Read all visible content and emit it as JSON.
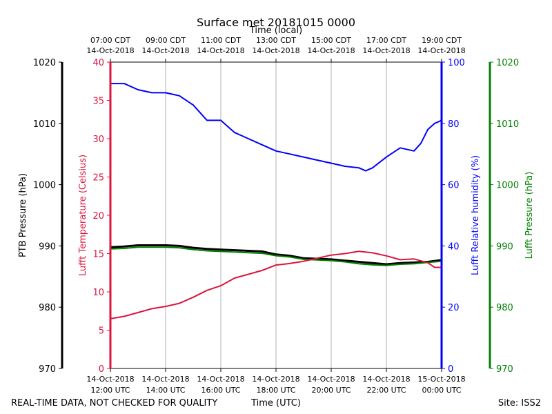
{
  "chart_data": {
    "type": "line",
    "title": "Surface met 20181015 0000",
    "top_axis_label": "Time (local)",
    "bottom_axis_label": "Time (UTC)",
    "footer_left": "REAL-TIME DATA, NOT CHECKED FOR QUALITY",
    "footer_right": "Site: ISS2",
    "x_range_hours_utc": [
      12,
      24
    ],
    "x_ticks_utc": [
      {
        "hour": 12,
        "line1": "14-Oct-2018",
        "line2": "12:00 UTC"
      },
      {
        "hour": 14,
        "line1": "14-Oct-2018",
        "line2": "14:00 UTC"
      },
      {
        "hour": 16,
        "line1": "14-Oct-2018",
        "line2": "16:00 UTC"
      },
      {
        "hour": 18,
        "line1": "14-Oct-2018",
        "line2": "18:00 UTC"
      },
      {
        "hour": 20,
        "line1": "14-Oct-2018",
        "line2": "20:00 UTC"
      },
      {
        "hour": 22,
        "line1": "14-Oct-2018",
        "line2": "22:00 UTC"
      },
      {
        "hour": 24,
        "line1": "15-Oct-2018",
        "line2": "00:00 UTC"
      }
    ],
    "x_ticks_local": [
      {
        "hour": 12,
        "line1": "07:00 CDT",
        "line2": "14-Oct-2018"
      },
      {
        "hour": 14,
        "line1": "09:00 CDT",
        "line2": "14-Oct-2018"
      },
      {
        "hour": 16,
        "line1": "11:00 CDT",
        "line2": "14-Oct-2018"
      },
      {
        "hour": 18,
        "line1": "13:00 CDT",
        "line2": "14-Oct-2018"
      },
      {
        "hour": 20,
        "line1": "15:00 CDT",
        "line2": "14-Oct-2018"
      },
      {
        "hour": 22,
        "line1": "17:00 CDT",
        "line2": "14-Oct-2018"
      },
      {
        "hour": 24,
        "line1": "19:00 CDT",
        "line2": "14-Oct-2018"
      }
    ],
    "axes": {
      "ptb_pressure": {
        "label": "PTB Pressure (hPa)",
        "range": [
          970,
          1020
        ],
        "ticks": [
          "970",
          "980",
          "990",
          "1000",
          "1010",
          "1020"
        ],
        "color": "#000000"
      },
      "temperature": {
        "label": "Lufft Temperature (Celsius)",
        "range": [
          0,
          40
        ],
        "ticks": [
          "0",
          "5",
          "10",
          "15",
          "20",
          "25",
          "30",
          "35",
          "40"
        ],
        "color": "#dc143c"
      },
      "humidity": {
        "label": "Lufft Relative humidity (%)",
        "range": [
          0,
          100
        ],
        "ticks": [
          "0",
          "20",
          "40",
          "60",
          "80",
          "100"
        ],
        "color": "#0000ff"
      },
      "lufft_pressure": {
        "label": "Lufft Pressure (hPa)",
        "range": [
          970,
          1020
        ],
        "ticks": [
          "970",
          "980",
          "990",
          "1000",
          "1010",
          "1020"
        ],
        "color": "#008000"
      }
    },
    "series": [
      {
        "name": "Lufft Relative humidity",
        "axis": "humidity",
        "color": "#0000ff",
        "x": [
          12.0,
          12.5,
          13.0,
          13.5,
          14.0,
          14.5,
          15.0,
          15.5,
          16.0,
          16.5,
          17.0,
          17.5,
          18.0,
          18.5,
          19.0,
          19.5,
          20.0,
          20.5,
          21.0,
          21.25,
          21.5,
          22.0,
          22.5,
          23.0,
          23.25,
          23.5,
          23.75,
          24.0
        ],
        "values": [
          93,
          93,
          91,
          90,
          90,
          89,
          86,
          81,
          81,
          77,
          75,
          73,
          71,
          70,
          69,
          68,
          67,
          66,
          65.5,
          64.5,
          65.5,
          69,
          72,
          71,
          73.5,
          78,
          80,
          81
        ]
      },
      {
        "name": "Lufft Temperature",
        "axis": "temperature",
        "color": "#dc143c",
        "x": [
          12.0,
          12.5,
          13.0,
          13.5,
          14.0,
          14.5,
          15.0,
          15.5,
          16.0,
          16.5,
          17.0,
          17.5,
          18.0,
          18.5,
          19.0,
          19.5,
          20.0,
          20.5,
          21.0,
          21.5,
          22.0,
          22.5,
          23.0,
          23.5,
          23.75,
          24.0
        ],
        "values": [
          6.5,
          6.8,
          7.3,
          7.8,
          8.1,
          8.5,
          9.3,
          10.2,
          10.8,
          11.8,
          12.3,
          12.8,
          13.5,
          13.7,
          14.0,
          14.4,
          14.8,
          15.0,
          15.3,
          15.1,
          14.7,
          14.2,
          14.3,
          13.8,
          13.2,
          13.2
        ]
      },
      {
        "name": "PTB Pressure",
        "axis": "ptb_pressure",
        "color": "#000000",
        "x": [
          12.0,
          12.5,
          13.0,
          13.5,
          14.0,
          14.5,
          15.0,
          15.5,
          16.0,
          16.5,
          17.0,
          17.5,
          18.0,
          18.5,
          19.0,
          19.5,
          20.0,
          20.5,
          21.0,
          21.5,
          22.0,
          22.5,
          23.0,
          23.5,
          24.0
        ],
        "values": [
          989.8,
          989.9,
          990.1,
          990.1,
          990.1,
          990.0,
          989.7,
          989.5,
          989.4,
          989.3,
          989.2,
          989.1,
          988.6,
          988.4,
          988.0,
          987.9,
          987.8,
          987.6,
          987.4,
          987.2,
          987.0,
          987.2,
          987.3,
          987.4,
          987.7
        ]
      },
      {
        "name": "Lufft Pressure",
        "axis": "lufft_pressure",
        "color": "#008000",
        "x": [
          12.0,
          12.5,
          13.0,
          13.5,
          14.0,
          14.5,
          15.0,
          15.5,
          16.0,
          16.5,
          17.0,
          17.5,
          18.0,
          18.5,
          19.0,
          19.5,
          20.0,
          20.5,
          21.0,
          21.5,
          22.0,
          22.5,
          23.0,
          23.5,
          24.0
        ],
        "values": [
          989.5,
          989.6,
          989.8,
          989.8,
          989.8,
          989.7,
          989.4,
          989.2,
          989.1,
          989.0,
          988.9,
          988.8,
          988.4,
          988.2,
          987.8,
          987.7,
          987.6,
          987.4,
          987.1,
          986.9,
          986.8,
          987.0,
          987.1,
          987.3,
          987.5
        ]
      }
    ]
  }
}
